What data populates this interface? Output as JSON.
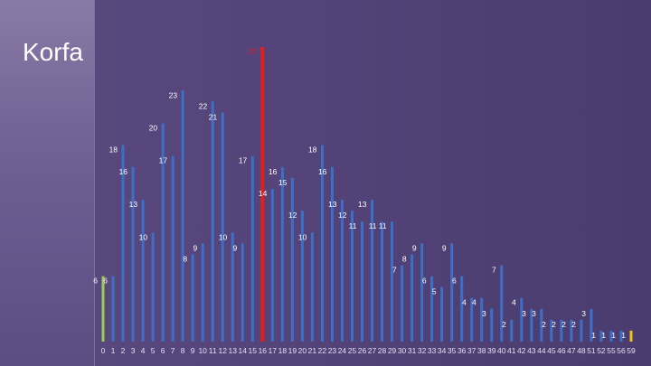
{
  "slide": {
    "title": "Korfa"
  },
  "colors": {
    "default": "#3d6fc8",
    "first": "#9acd5a",
    "highlight": "#e02020",
    "last": "#f0c020",
    "label": "#ffffff"
  },
  "chart_data": {
    "type": "bar",
    "title": "",
    "xlabel": "",
    "ylabel": "",
    "categories": [
      "0",
      "1",
      "2",
      "3",
      "4",
      "5",
      "6",
      "7",
      "8",
      "9",
      "10",
      "11",
      "12",
      "13",
      "14",
      "15",
      "16",
      "17",
      "18",
      "19",
      "20",
      "21",
      "22",
      "23",
      "24",
      "25",
      "26",
      "27",
      "28",
      "29",
      "30",
      "31",
      "32",
      "33",
      "34",
      "35",
      "36",
      "37",
      "38",
      "39",
      "40",
      "41",
      "42",
      "43",
      "44",
      "45",
      "46",
      "47",
      "48",
      "51",
      "52",
      "55",
      "56",
      "59"
    ],
    "values": [
      6,
      6,
      18,
      16,
      13,
      10,
      20,
      17,
      23,
      8,
      9,
      22,
      21,
      10,
      9,
      17,
      27,
      14,
      16,
      15,
      12,
      10,
      18,
      16,
      13,
      12,
      11,
      13,
      11,
      11,
      7,
      8,
      9,
      6,
      5,
      9,
      6,
      4,
      4,
      3,
      7,
      2,
      4,
      3,
      3,
      2,
      2,
      2,
      2,
      3,
      1,
      1,
      1,
      1
    ],
    "value_labels": [
      "6",
      "6",
      "18",
      "16",
      "13",
      "10",
      "20",
      "17",
      "23",
      "8",
      "9",
      "22",
      "21",
      "10",
      "9",
      "17",
      "27",
      "14",
      "16",
      "15",
      "12",
      "10",
      "18",
      "16",
      "13",
      "12",
      "11",
      "13",
      "11",
      "11",
      "7",
      "8",
      "9",
      "6",
      "5",
      "9",
      "6",
      "4",
      "4",
      "3",
      "7",
      "2",
      "4",
      "3",
      "3",
      "2",
      "2",
      "2",
      "2",
      "3",
      "1",
      "1",
      "1",
      "1"
    ],
    "highlight_index": 16,
    "ylim": [
      0,
      30
    ],
    "grid": false,
    "legend": "none"
  }
}
